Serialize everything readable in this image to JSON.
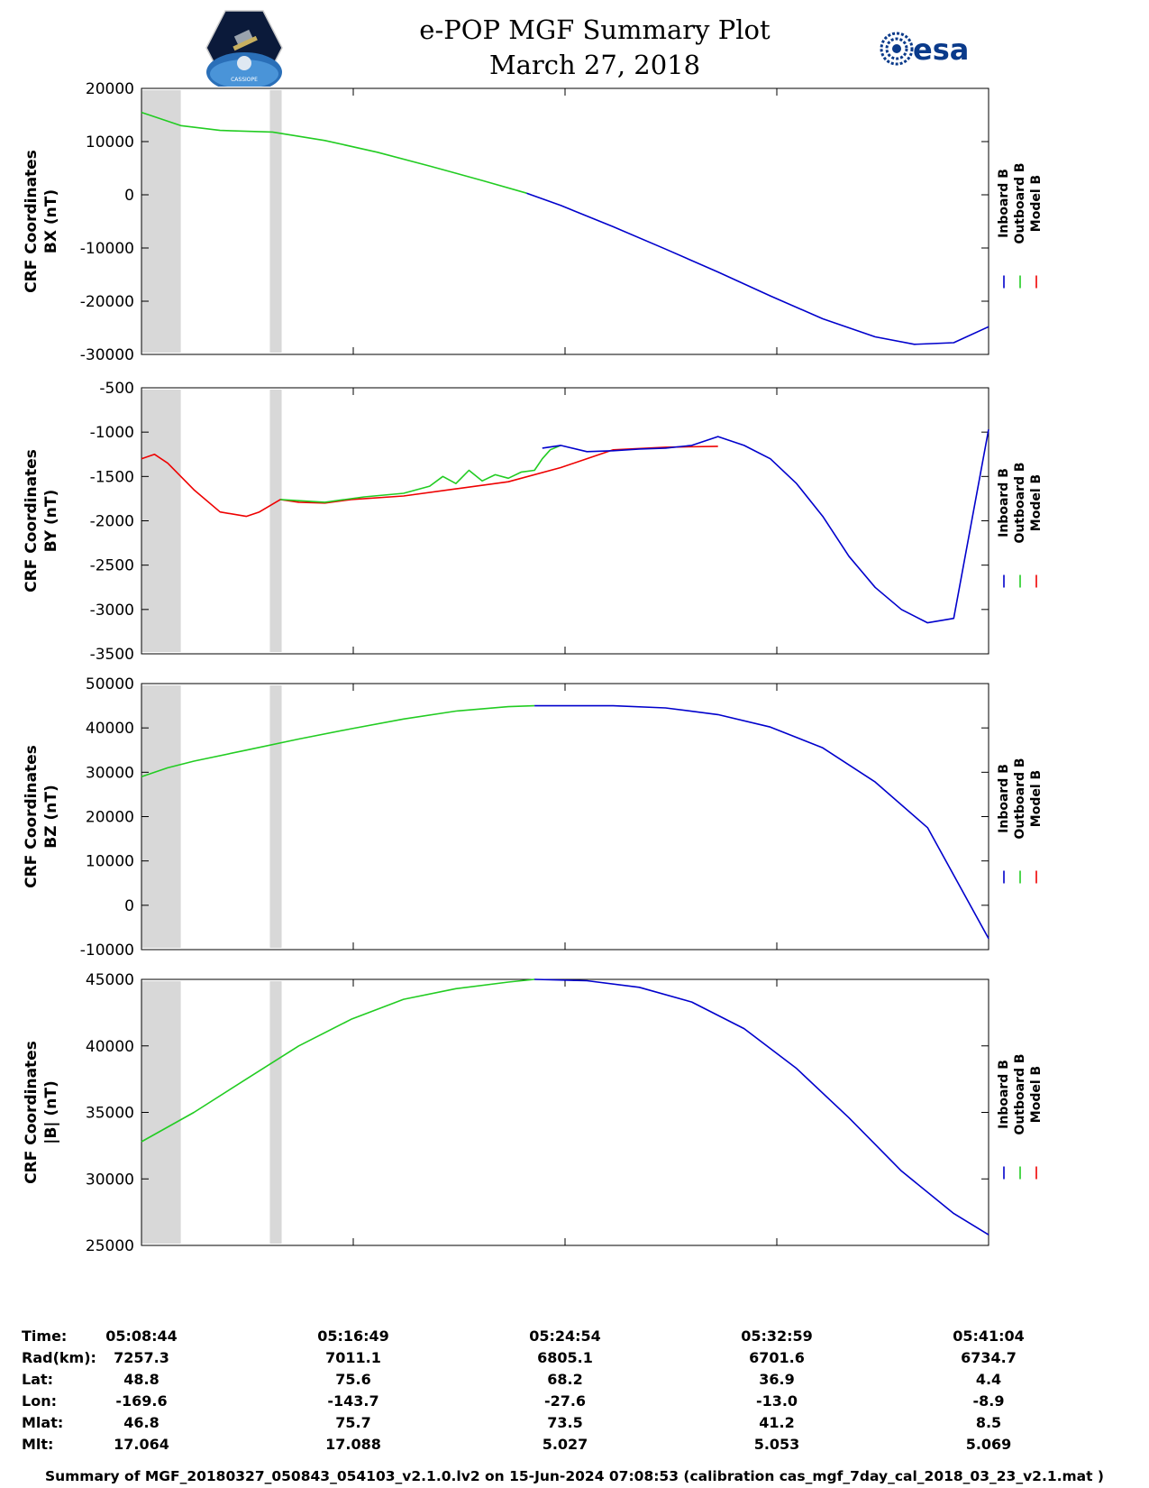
{
  "title": {
    "line1": "e-POP MGF Summary Plot",
    "line2": "March 27, 2018"
  },
  "logos": {
    "mission_text": "CASSIOPE",
    "esa_text": "esa"
  },
  "colors": {
    "inboard": "#0000cc",
    "outboard": "#22cc22",
    "model": "#ee0000",
    "gap_band": "#d8d8d8"
  },
  "legend": [
    "Inboard B",
    "Outboard B",
    "Model B"
  ],
  "chart_data": [
    {
      "type": "line",
      "ylabel_line1": "CRF Coordinates",
      "ylabel_line2": "BX (nT)",
      "ylim": [
        -30000,
        20000
      ],
      "yticks": [
        20000,
        10000,
        0,
        -10000,
        -20000,
        -30000
      ],
      "xlim": [
        0,
        32.33
      ],
      "gaps": [
        [
          0,
          1.5
        ],
        [
          4.9,
          5.35
        ]
      ],
      "series": [
        {
          "name": "Outboard B",
          "x": [
            0,
            1.5,
            3,
            5,
            7,
            9,
            11,
            13,
            14.7
          ],
          "values": [
            15500,
            13000,
            12100,
            11800,
            10200,
            8000,
            5400,
            2700,
            300
          ]
        },
        {
          "name": "Inboard B",
          "x": [
            14.7,
            16,
            18,
            20,
            22,
            24,
            26,
            28,
            29.5,
            31,
            32.33
          ],
          "values": [
            300,
            -2000,
            -6000,
            -10200,
            -14500,
            -19000,
            -23300,
            -26700,
            -28100,
            -27800,
            -24800
          ]
        }
      ]
    },
    {
      "type": "line",
      "ylabel_line1": "CRF Coordinates",
      "ylabel_line2": "BY (nT)",
      "ylim": [
        -3500,
        -500
      ],
      "yticks": [
        -500,
        -1000,
        -1500,
        -2000,
        -2500,
        -3000,
        -3500
      ],
      "xlim": [
        0,
        32.33
      ],
      "gaps": [
        [
          0,
          1.5
        ],
        [
          4.9,
          5.35
        ]
      ],
      "series": [
        {
          "name": "Model B",
          "x": [
            0,
            0.5,
            1,
            2,
            3,
            4,
            4.5,
            5.3,
            6,
            7,
            8,
            10,
            12,
            14,
            16,
            18,
            20,
            22
          ],
          "values": [
            -1300,
            -1250,
            -1350,
            -1650,
            -1900,
            -1950,
            -1900,
            -1760,
            -1790,
            -1800,
            -1760,
            -1720,
            -1640,
            -1560,
            -1400,
            -1200,
            -1170,
            -1160
          ]
        },
        {
          "name": "Outboard B",
          "x": [
            5.3,
            7,
            8.5,
            10,
            11,
            11.5,
            12,
            12.5,
            13,
            13.5,
            14,
            14.5,
            15,
            15.3,
            15.6,
            16
          ],
          "values": [
            -1760,
            -1790,
            -1730,
            -1690,
            -1610,
            -1500,
            -1580,
            -1430,
            -1550,
            -1480,
            -1520,
            -1450,
            -1430,
            -1300,
            -1200,
            -1150
          ]
        },
        {
          "name": "Inboard B",
          "x": [
            15.3,
            16,
            17,
            18,
            19,
            20,
            21,
            22,
            23,
            24,
            25,
            26,
            27,
            28,
            29,
            30,
            31,
            32.33
          ],
          "values": [
            -1180,
            -1150,
            -1220,
            -1210,
            -1190,
            -1180,
            -1150,
            -1050,
            -1150,
            -1300,
            -1580,
            -1950,
            -2400,
            -2750,
            -3000,
            -3150,
            -3100,
            -970
          ]
        }
      ]
    },
    {
      "type": "line",
      "ylabel_line1": "CRF Coordinates",
      "ylabel_line2": "BZ (nT)",
      "ylim": [
        -10000,
        50000
      ],
      "yticks": [
        50000,
        40000,
        30000,
        20000,
        10000,
        0,
        -10000
      ],
      "xlim": [
        0,
        32.33
      ],
      "gaps": [
        [
          0,
          1.5
        ],
        [
          4.9,
          5.35
        ]
      ],
      "series": [
        {
          "name": "Outboard B",
          "x": [
            0,
            1,
            2,
            4,
            6,
            8,
            10,
            12,
            14,
            15
          ],
          "values": [
            29000,
            31000,
            32500,
            35000,
            37500,
            39800,
            42000,
            43800,
            44800,
            45000
          ]
        },
        {
          "name": "Inboard B",
          "x": [
            15,
            18,
            20,
            22,
            24,
            26,
            28,
            30,
            32.33
          ],
          "values": [
            45000,
            45000,
            44500,
            43000,
            40200,
            35500,
            27800,
            17500,
            -7500
          ]
        }
      ]
    },
    {
      "type": "line",
      "ylabel_line1": "CRF Coordinates",
      "ylabel_line2": "|B| (nT)",
      "ylim": [
        25000,
        45000
      ],
      "yticks": [
        45000,
        40000,
        35000,
        30000,
        25000
      ],
      "xlim": [
        0,
        32.33
      ],
      "gaps": [
        [
          0,
          1.5
        ],
        [
          4.9,
          5.35
        ]
      ],
      "series": [
        {
          "name": "Outboard B",
          "x": [
            0,
            2,
            4,
            6,
            8,
            10,
            12,
            14,
            15
          ],
          "values": [
            32800,
            35000,
            37500,
            40000,
            42000,
            43500,
            44300,
            44800,
            45000
          ]
        },
        {
          "name": "Inboard B",
          "x": [
            15,
            17,
            19,
            21,
            23,
            25,
            27,
            29,
            31,
            32.33
          ],
          "values": [
            45000,
            44900,
            44400,
            43300,
            41300,
            38300,
            34600,
            30600,
            27400,
            25800
          ]
        }
      ]
    }
  ],
  "ephemeris": {
    "labels": [
      "Time:",
      "Rad(km):",
      "Lat:",
      "Lon:",
      "Mlat:",
      "Mlt:"
    ],
    "columns": [
      [
        "05:08:44",
        "7257.3",
        "48.8",
        "-169.6",
        "46.8",
        "17.064"
      ],
      [
        "05:16:49",
        "7011.1",
        "75.6",
        "-143.7",
        "75.7",
        "17.088"
      ],
      [
        "05:24:54",
        "6805.1",
        "68.2",
        "-27.6",
        "73.5",
        "5.027"
      ],
      [
        "05:32:59",
        "6701.6",
        "36.9",
        "-13.0",
        "41.2",
        "5.053"
      ],
      [
        "05:41:04",
        "6734.7",
        "4.4",
        "-8.9",
        "8.5",
        "5.069"
      ]
    ]
  },
  "footer": "Summary of MGF_20180327_050843_054103_v2.1.0.lv2 on 15-Jun-2024 07:08:53 (calibration cas_mgf_7day_cal_2018_03_23_v2.1.mat )"
}
